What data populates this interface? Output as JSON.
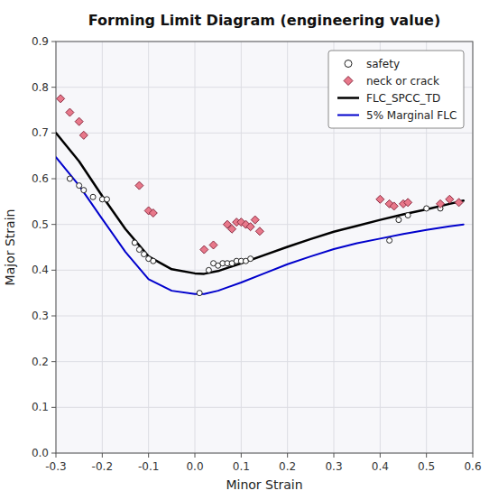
{
  "chart_data": {
    "type": "scatter",
    "title": "Forming Limit Diagram (engineering value)",
    "x_label": "Minor Strain",
    "y_label": "Major Strain",
    "xlim": [
      -0.3,
      0.6
    ],
    "ylim": [
      0.0,
      0.9
    ],
    "xticks": [
      -0.3,
      -0.2,
      -0.1,
      {
        "value": 0.0,
        "label": "0.0"
      },
      0.1,
      0.2,
      0.3,
      0.4,
      0.5,
      0.6
    ],
    "yticks": [
      {
        "value": 0.0,
        "label": "0.0"
      },
      0.1,
      0.2,
      0.3,
      0.4,
      0.5,
      0.6,
      0.7,
      0.8,
      0.9
    ],
    "grid": true,
    "legend": "upper right",
    "series": [
      {
        "name": "safety",
        "type": "scatter",
        "marker": "circle",
        "color": "white",
        "x": [
          -0.27,
          -0.25,
          -0.24,
          -0.22,
          -0.2,
          -0.19,
          -0.13,
          -0.12,
          -0.11,
          -0.1,
          -0.09,
          0.01,
          0.03,
          0.04,
          0.05,
          0.06,
          0.07,
          0.08,
          0.09,
          0.1,
          0.11,
          0.12,
          0.42,
          0.44,
          0.46,
          0.5,
          0.53
        ],
        "values": [
          0.6,
          0.585,
          0.575,
          0.56,
          0.555,
          0.555,
          0.46,
          0.445,
          0.435,
          0.425,
          0.42,
          0.35,
          0.4,
          0.415,
          0.41,
          0.415,
          0.415,
          0.415,
          0.42,
          0.42,
          0.42,
          0.425,
          0.465,
          0.51,
          0.52,
          0.535,
          0.535
        ]
      },
      {
        "name": "neck or crack",
        "type": "scatter",
        "marker": "diamond",
        "color": "#e8788a",
        "x": [
          -0.29,
          -0.27,
          -0.25,
          -0.24,
          -0.12,
          -0.1,
          -0.09,
          0.02,
          0.04,
          0.07,
          0.08,
          0.09,
          0.1,
          0.11,
          0.12,
          0.13,
          0.14,
          0.4,
          0.42,
          0.43,
          0.45,
          0.46,
          0.53,
          0.55,
          0.57
        ],
        "values": [
          0.775,
          0.745,
          0.725,
          0.695,
          0.585,
          0.53,
          0.525,
          0.445,
          0.455,
          0.5,
          0.49,
          0.505,
          0.505,
          0.5,
          0.495,
          0.51,
          0.485,
          0.555,
          0.545,
          0.54,
          0.545,
          0.548,
          0.545,
          0.555,
          0.548
        ]
      },
      {
        "name": "FLC_SPCC_TD",
        "type": "line",
        "color": "black",
        "x": [
          -0.3,
          -0.25,
          -0.2,
          -0.15,
          -0.1,
          -0.05,
          0.0,
          0.02,
          0.05,
          0.1,
          0.15,
          0.2,
          0.25,
          0.3,
          0.35,
          0.4,
          0.45,
          0.5,
          0.55,
          0.58
        ],
        "values": [
          0.7,
          0.638,
          0.562,
          0.49,
          0.43,
          0.402,
          0.393,
          0.392,
          0.398,
          0.415,
          0.433,
          0.451,
          0.468,
          0.484,
          0.497,
          0.51,
          0.522,
          0.533,
          0.545,
          0.552
        ]
      },
      {
        "name": "5% Marginal FLC",
        "type": "line",
        "color": "#0000cc",
        "x": [
          -0.3,
          -0.25,
          -0.2,
          -0.15,
          -0.1,
          -0.05,
          0.0,
          0.02,
          0.05,
          0.1,
          0.15,
          0.2,
          0.25,
          0.3,
          0.35,
          0.4,
          0.45,
          0.5,
          0.55,
          0.58
        ],
        "values": [
          0.647,
          0.585,
          0.512,
          0.44,
          0.38,
          0.355,
          0.348,
          0.348,
          0.355,
          0.373,
          0.393,
          0.413,
          0.43,
          0.446,
          0.459,
          0.469,
          0.479,
          0.488,
          0.496,
          0.5
        ]
      }
    ]
  }
}
